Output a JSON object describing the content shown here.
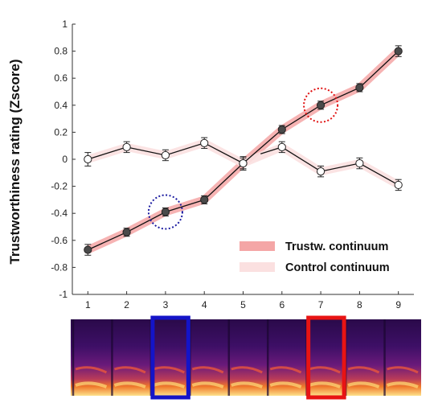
{
  "chart_data": {
    "type": "line",
    "x": [
      1,
      2,
      3,
      4,
      5,
      6,
      7,
      8,
      9
    ],
    "xlim": [
      0.6,
      9.4
    ],
    "ylim": [
      -1,
      1
    ],
    "xticks": [
      "1",
      "2",
      "3",
      "4",
      "5",
      "6",
      "7",
      "8",
      "9"
    ],
    "yticks": [
      "-1",
      "-0.8",
      "-0.6",
      "-0.4",
      "-0.2",
      "0",
      "0.2",
      "0.4",
      "0.6",
      "0.8",
      "1"
    ],
    "ylabel": "Trustworthiness rating (Zscore)",
    "xlabel": "",
    "title": "",
    "grid": false,
    "legend_position": "bottom-right",
    "series": [
      {
        "name": "Trustw. continuum",
        "marker": "filled-circle",
        "line_color": "#111111",
        "band_color": "#f4a6a6",
        "values": [
          -0.67,
          -0.54,
          -0.39,
          -0.3,
          -0.03,
          0.22,
          0.4,
          0.53,
          0.8
        ],
        "errors": [
          0.04,
          0.03,
          0.03,
          0.03,
          0.04,
          0.03,
          0.03,
          0.03,
          0.04
        ]
      },
      {
        "name": "Control continuum",
        "marker": "open-circle",
        "line_color": "#111111",
        "band_color": "#fbe0e0",
        "values": [
          0.0,
          0.09,
          0.03,
          0.12,
          -0.03,
          0.09,
          -0.09,
          -0.03,
          -0.19
        ],
        "errors": [
          0.05,
          0.04,
          0.04,
          0.04,
          0.05,
          0.04,
          0.04,
          0.04,
          0.04
        ]
      }
    ],
    "highlights": [
      {
        "x": 3,
        "series": "Trustw. continuum",
        "color": "#1a1aa0",
        "style": "dotted-circle"
      },
      {
        "x": 7,
        "series": "Trustw. continuum",
        "color": "#e01010",
        "style": "dotted-circle"
      }
    ]
  },
  "spectrogram": {
    "frames": 9,
    "highlighted_frames": [
      {
        "index": 3,
        "color": "#1414c8"
      },
      {
        "index": 7,
        "color": "#e81414"
      }
    ]
  }
}
